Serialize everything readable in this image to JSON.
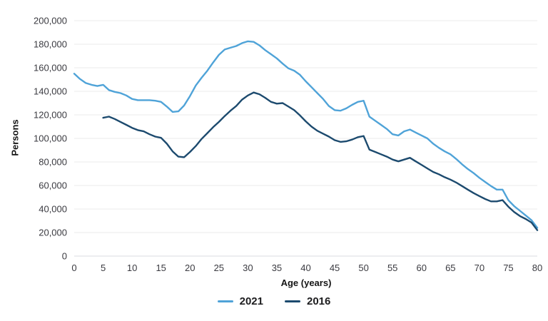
{
  "chart_data": {
    "type": "line",
    "title": "",
    "xlabel": "Age (years)",
    "ylabel": "Persons",
    "xlim": [
      0,
      80
    ],
    "ylim": [
      0,
      200000
    ],
    "grid": "horizontal",
    "legend_position": "bottom-center",
    "xticks": [
      0,
      5,
      10,
      15,
      20,
      25,
      30,
      35,
      40,
      45,
      50,
      55,
      60,
      65,
      70,
      75,
      80
    ],
    "ytick_values": [
      0,
      20000,
      40000,
      60000,
      80000,
      100000,
      120000,
      140000,
      160000,
      180000,
      200000
    ],
    "ytick_labels": [
      "0",
      "20,000",
      "40,000",
      "60,000",
      "80,000",
      "100,000",
      "120,000",
      "140,000",
      "160,000",
      "180,000",
      "200,000"
    ],
    "colors": {
      "gridline": "#EBEBEB",
      "axis_line": "#D8DBE0",
      "tick_text": "#3A3A40"
    },
    "series": [
      {
        "name": "2021",
        "color": "#4FA3D8",
        "x_start": 0,
        "x_step": 1,
        "values": [
          155000,
          150500,
          147000,
          145500,
          144500,
          145500,
          141000,
          139500,
          138500,
          136500,
          133500,
          132500,
          132500,
          132500,
          132000,
          131000,
          127000,
          122500,
          123000,
          128000,
          136000,
          145000,
          151500,
          157500,
          164500,
          171000,
          175500,
          177000,
          178500,
          181000,
          182500,
          182000,
          179000,
          175000,
          171500,
          168000,
          163500,
          159500,
          157500,
          154000,
          148500,
          143500,
          138500,
          133500,
          127500,
          124000,
          123500,
          125500,
          128500,
          131000,
          132000,
          118500,
          115000,
          111500,
          108000,
          103500,
          102500,
          106000,
          107500,
          105000,
          102500,
          100000,
          95500,
          92000,
          89000,
          86500,
          82500,
          78000,
          74000,
          70500,
          66500,
          63000,
          59500,
          56500,
          56500,
          47500,
          42500,
          38500,
          34500,
          30500,
          24000
        ]
      },
      {
        "name": "2016",
        "color": "#1C4A6E",
        "x_start": 5,
        "x_step": 1,
        "values": [
          117500,
          118500,
          116500,
          114000,
          111500,
          109000,
          107000,
          106000,
          103500,
          101500,
          100500,
          95500,
          89000,
          84500,
          84000,
          88500,
          93500,
          99500,
          104500,
          109500,
          114000,
          119000,
          123500,
          127500,
          133000,
          136500,
          139000,
          137500,
          134500,
          131000,
          129500,
          130000,
          127000,
          124000,
          119500,
          114500,
          110000,
          106500,
          104000,
          101500,
          98500,
          97000,
          97500,
          99000,
          101000,
          102000,
          90500,
          88500,
          86500,
          84500,
          82000,
          80500,
          82000,
          83500,
          80500,
          77500,
          74500,
          71500,
          69500,
          67000,
          65000,
          62500,
          59500,
          56500,
          53500,
          51000,
          48500,
          46500,
          46500,
          47500,
          42000,
          37500,
          34000,
          31500,
          28500,
          22000
        ]
      }
    ]
  },
  "legend": {
    "items": [
      {
        "label": "2021"
      },
      {
        "label": "2016"
      }
    ]
  }
}
